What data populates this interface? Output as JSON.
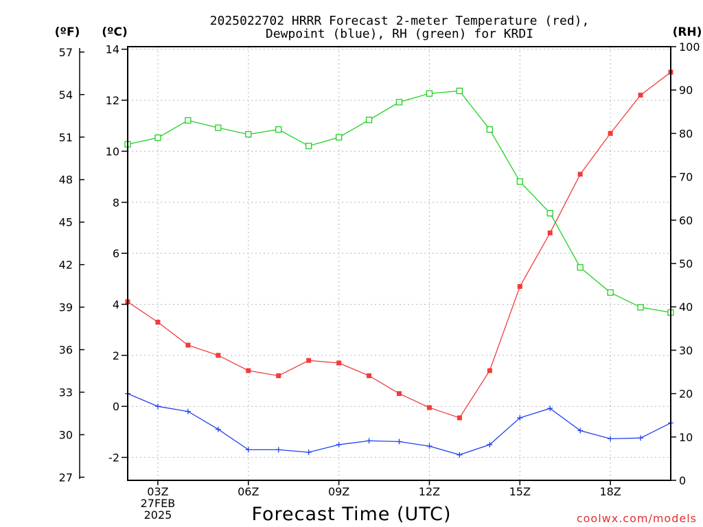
{
  "chart_data": {
    "type": "line",
    "title": [
      "2025022702 HRRR Forecast 2-meter Temperature (red),",
      "Dewpoint (blue), RH (green) for KRDI"
    ],
    "xlabel": "Forecast Time (UTC)",
    "credit": "coolwx.com/models",
    "axis_units": {
      "fahrenheit": "(ºF)",
      "celsius": "(ºC)",
      "rh": "(RH)"
    },
    "x_hours": [
      2,
      3,
      4,
      5,
      6,
      7,
      8,
      9,
      10,
      11,
      12,
      13,
      14,
      15,
      16,
      17,
      18,
      19,
      20
    ],
    "xlim": [
      2,
      20
    ],
    "x_ticks": [
      {
        "hour": 3,
        "lines": [
          "03Z",
          "27FEB",
          "2025"
        ]
      },
      {
        "hour": 6,
        "lines": [
          "06Z"
        ]
      },
      {
        "hour": 9,
        "lines": [
          "09Z"
        ]
      },
      {
        "hour": 12,
        "lines": [
          "12Z"
        ]
      },
      {
        "hour": 15,
        "lines": [
          "15Z"
        ]
      },
      {
        "hour": 18,
        "lines": [
          "18Z"
        ]
      }
    ],
    "celsius_axis": {
      "ylim": [
        -2.9,
        14.1
      ],
      "ticks": [
        "-2",
        "0",
        "2",
        "4",
        "6",
        "8",
        "10",
        "12",
        "14"
      ]
    },
    "fahrenheit_axis": {
      "ticks": [
        "27",
        "30",
        "33",
        "36",
        "39",
        "42",
        "45",
        "48",
        "51",
        "54",
        "57"
      ]
    },
    "rh_axis": {
      "ylim": [
        0,
        100
      ],
      "ticks": [
        "0",
        "10",
        "20",
        "30",
        "40",
        "50",
        "60",
        "70",
        "80",
        "90",
        "100"
      ]
    },
    "grid": true,
    "series": [
      {
        "name": "Temperature",
        "axis": "celsius",
        "color": "#f03c3c",
        "marker": "filled-square",
        "values": [
          4.1,
          3.3,
          2.4,
          2.0,
          1.4,
          1.2,
          1.8,
          1.7,
          1.2,
          0.5,
          -0.05,
          -0.45,
          1.4,
          4.7,
          6.8,
          9.1,
          10.7,
          12.2,
          13.1
        ]
      },
      {
        "name": "Dewpoint",
        "axis": "celsius",
        "color": "#2040f0",
        "marker": "plus",
        "values": [
          0.5,
          0.0,
          -0.2,
          -0.9,
          -1.7,
          -1.7,
          -1.8,
          -1.5,
          -1.35,
          -1.38,
          -1.56,
          -1.9,
          -1.5,
          -0.45,
          -0.08,
          -0.95,
          -1.27,
          -1.24,
          -0.65
        ]
      },
      {
        "name": "RH",
        "axis": "rh",
        "color": "#20d020",
        "marker": "open-square",
        "values": [
          77.5,
          79,
          83,
          81.3,
          79.8,
          80.9,
          77.1,
          79.1,
          83.1,
          87.2,
          89.2,
          89.8,
          80.9,
          68.9,
          61.6,
          49.1,
          43.3,
          39.9,
          38.7
        ]
      }
    ]
  }
}
